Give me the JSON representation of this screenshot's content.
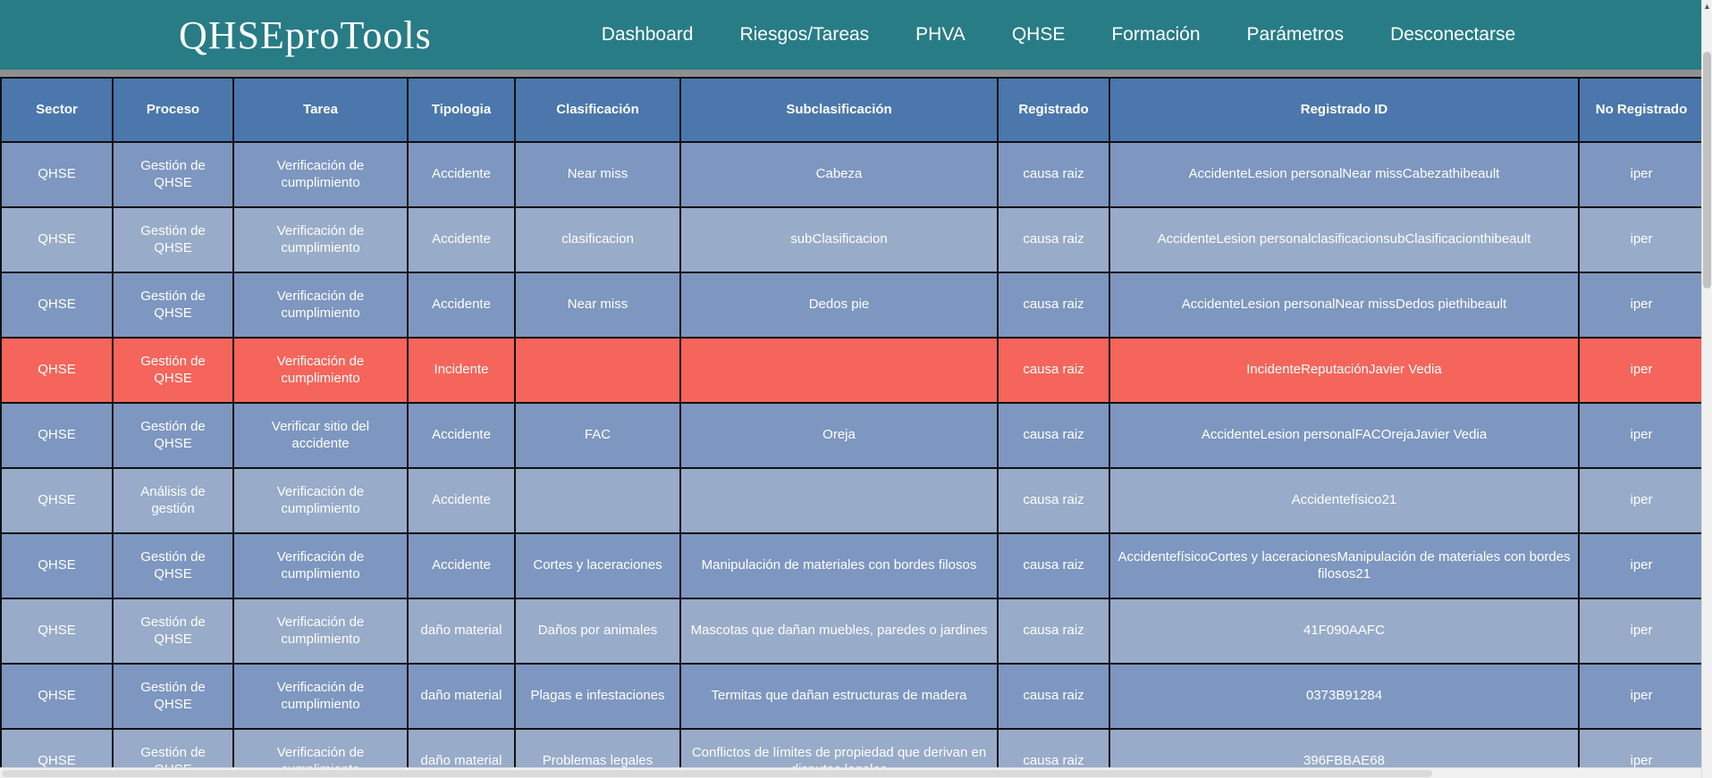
{
  "nav": {
    "brand": "QHSEproTools",
    "items": [
      {
        "label": "Dashboard"
      },
      {
        "label": "Riesgos/Tareas"
      },
      {
        "label": "PHVA"
      },
      {
        "label": "QHSE"
      },
      {
        "label": "Formación"
      },
      {
        "label": "Parámetros"
      },
      {
        "label": "Desconectarse"
      }
    ]
  },
  "table": {
    "columns": [
      "Sector",
      "Proceso",
      "Tarea",
      "Tipologia",
      "Clasificación",
      "Subclasificación",
      "Registrado",
      "Registrado ID",
      "No Registrado"
    ],
    "rows": [
      {
        "tone": "dark",
        "cells": [
          "QHSE",
          "Gestión de QHSE",
          "Verificación de cumplimiento",
          "Accidente",
          "Near miss",
          "Cabeza",
          "causa raiz",
          "AccidenteLesion personalNear missCabezathibeault",
          "iper"
        ]
      },
      {
        "tone": "light",
        "cells": [
          "QHSE",
          "Gestión de QHSE",
          "Verificación de cumplimiento",
          "Accidente",
          "clasificacion",
          "subClasificacion",
          "causa raiz",
          "AccidenteLesion personalclasificacionsubClasificacionthibeault",
          "iper"
        ]
      },
      {
        "tone": "dark",
        "cells": [
          "QHSE",
          "Gestión de QHSE",
          "Verificación de cumplimiento",
          "Accidente",
          "Near miss",
          "Dedos pie",
          "causa raiz",
          "AccidenteLesion personalNear missDedos piethibeault",
          "iper"
        ]
      },
      {
        "tone": "alert",
        "cells": [
          "QHSE",
          "Gestión de QHSE",
          "Verificación de cumplimiento",
          "Incidente",
          "",
          "",
          "causa raiz",
          "IncidenteReputaciónJavier Vedia",
          "iper"
        ]
      },
      {
        "tone": "dark",
        "cells": [
          "QHSE",
          "Gestión de QHSE",
          "Verificar sitio del accidente",
          "Accidente",
          "FAC",
          "Oreja",
          "causa raiz",
          "AccidenteLesion personalFACOrejaJavier Vedia",
          "iper"
        ]
      },
      {
        "tone": "light",
        "cells": [
          "QHSE",
          "Análisis de gestión",
          "Verificación de cumplimiento",
          "Accidente",
          "",
          "",
          "causa raiz",
          "Accidentefísico21",
          "iper"
        ]
      },
      {
        "tone": "dark",
        "cells": [
          "QHSE",
          "Gestión de QHSE",
          "Verificación de cumplimiento",
          "Accidente",
          "Cortes y laceraciones",
          "Manipulación de materiales con bordes filosos",
          "causa raiz",
          "AccidentefísicoCortes y laceracionesManipulación de materiales con bordes filosos21",
          "iper"
        ]
      },
      {
        "tone": "light",
        "cells": [
          "QHSE",
          "Gestión de QHSE",
          "Verificación de cumplimiento",
          "daño material",
          "Daños por animales",
          "Mascotas que dañan muebles, paredes o jardines",
          "causa raiz",
          "41F090AAFC",
          "iper"
        ]
      },
      {
        "tone": "dark",
        "cells": [
          "QHSE",
          "Gestión de QHSE",
          "Verificación de cumplimiento",
          "daño material",
          "Plagas e infestaciones",
          "Termitas que dañan estructuras de madera",
          "causa raiz",
          "0373B91284",
          "iper"
        ]
      },
      {
        "tone": "light",
        "cells": [
          "QHSE",
          "Gestión de QHSE",
          "Verificación de cumplimiento",
          "daño material",
          "Problemas legales",
          "Conflictos de límites de propiedad que derivan en disputas legales",
          "causa raiz",
          "396FBBAE68",
          "iper"
        ]
      }
    ]
  },
  "scrollbar": {
    "up_arrow": "▲"
  },
  "colors": {
    "navbar_teal": "#287c85",
    "divider_gray": "#909090",
    "header_blue": "#4b77ac",
    "row_dark_blue": "#7e97c0",
    "row_light_blue": "#98abc9",
    "row_alert_red": "#f5655b",
    "cell_border": "#111111",
    "text_white": "#ffffff"
  }
}
